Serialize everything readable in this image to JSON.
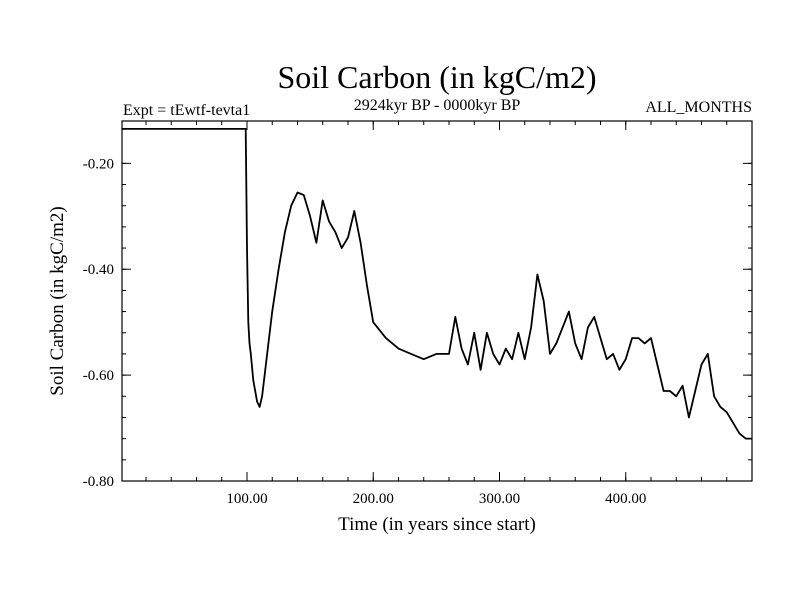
{
  "chart_data": {
    "type": "line",
    "title": "Soil Carbon (in kgC/m2)",
    "subtitle": "2924kyr BP - 0000kyr BP",
    "left_note": "Expt = tEwtf-tevta1",
    "right_note": "ALL_MONTHS",
    "xlabel": "Time (in years since start)",
    "ylabel": "Soil Carbon (in kgC/m2)",
    "xlim": [
      1,
      500
    ],
    "ylim": [
      -0.8,
      -0.12
    ],
    "xticks": [
      100,
      200,
      300,
      400
    ],
    "xtick_labels": [
      "100.00",
      "200.00",
      "300.00",
      "400.00"
    ],
    "yticks": [
      -0.2,
      -0.4,
      -0.6,
      -0.8
    ],
    "ytick_labels": [
      "-0.20",
      "-0.40",
      "-0.60",
      "-0.80"
    ],
    "series": [
      {
        "name": "Soil Carbon",
        "x": [
          1,
          99,
          100,
          101,
          102,
          103,
          105,
          108,
          110,
          112,
          115,
          120,
          125,
          130,
          135,
          140,
          145,
          150,
          155,
          160,
          165,
          170,
          175,
          180,
          185,
          190,
          195,
          200,
          210,
          220,
          230,
          240,
          250,
          260,
          265,
          270,
          275,
          280,
          285,
          290,
          295,
          300,
          305,
          310,
          315,
          320,
          325,
          330,
          335,
          340,
          345,
          350,
          355,
          360,
          365,
          370,
          375,
          380,
          385,
          390,
          395,
          400,
          405,
          410,
          415,
          420,
          425,
          430,
          435,
          440,
          445,
          450,
          455,
          460,
          465,
          470,
          475,
          480,
          485,
          490,
          495,
          500
        ],
        "values": [
          -0.135,
          -0.135,
          -0.36,
          -0.5,
          -0.54,
          -0.56,
          -0.61,
          -0.65,
          -0.66,
          -0.64,
          -0.58,
          -0.48,
          -0.4,
          -0.33,
          -0.28,
          -0.255,
          -0.26,
          -0.3,
          -0.35,
          -0.27,
          -0.31,
          -0.33,
          -0.36,
          -0.34,
          -0.29,
          -0.35,
          -0.43,
          -0.5,
          -0.53,
          -0.55,
          -0.56,
          -0.57,
          -0.56,
          -0.56,
          -0.49,
          -0.55,
          -0.58,
          -0.52,
          -0.59,
          -0.52,
          -0.56,
          -0.58,
          -0.55,
          -0.57,
          -0.52,
          -0.57,
          -0.51,
          -0.41,
          -0.46,
          -0.56,
          -0.54,
          -0.51,
          -0.48,
          -0.54,
          -0.57,
          -0.51,
          -0.49,
          -0.53,
          -0.57,
          -0.56,
          -0.59,
          -0.57,
          -0.53,
          -0.53,
          -0.54,
          -0.53,
          -0.58,
          -0.63,
          -0.63,
          -0.64,
          -0.62,
          -0.68,
          -0.63,
          -0.58,
          -0.56,
          -0.64,
          -0.66,
          -0.67,
          -0.69,
          -0.71,
          -0.72,
          -0.72
        ]
      }
    ]
  }
}
